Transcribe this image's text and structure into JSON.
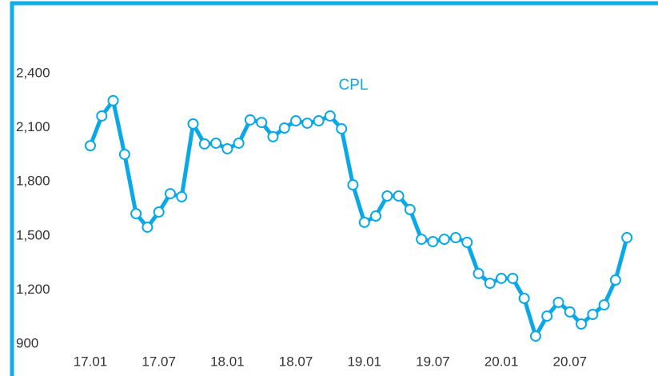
{
  "chart_data": {
    "type": "line",
    "categories": [
      "17.01",
      null,
      null,
      null,
      null,
      null,
      "17.07",
      null,
      null,
      null,
      null,
      null,
      "18.01",
      null,
      null,
      null,
      null,
      null,
      "18.07",
      null,
      null,
      null,
      null,
      null,
      "19.01",
      null,
      null,
      null,
      null,
      null,
      "19.07",
      null,
      null,
      null,
      null,
      null,
      "20.01",
      null,
      null,
      null,
      null,
      null,
      "20.07",
      null,
      null,
      null,
      null,
      null
    ],
    "series": [
      {
        "name": "CPL",
        "color": "#0aa8e6",
        "values": [
          2000,
          2165,
          2250,
          1952,
          1623,
          1548,
          1632,
          1734,
          1717,
          2121,
          2010,
          2014,
          1983,
          2014,
          2143,
          2129,
          2050,
          2098,
          2138,
          2125,
          2138,
          2165,
          2094,
          1783,
          1575,
          1610,
          1721,
          1721,
          1646,
          1481,
          1468,
          1481,
          1490,
          1464,
          1291,
          1237,
          1264,
          1264,
          1153,
          944,
          1055,
          1131,
          1078,
          1011,
          1064,
          1117,
          1255,
          1490
        ]
      }
    ],
    "ylim": [
      900,
      2400
    ],
    "yticks": [
      {
        "value": 900,
        "label": "900"
      },
      {
        "value": 1200,
        "label": "1,200"
      },
      {
        "value": 1500,
        "label": "1,500"
      },
      {
        "value": 1800,
        "label": "1,800"
      },
      {
        "value": 2100,
        "label": "2,100"
      },
      {
        "value": 2400,
        "label": "2,400"
      }
    ],
    "grid": false
  }
}
